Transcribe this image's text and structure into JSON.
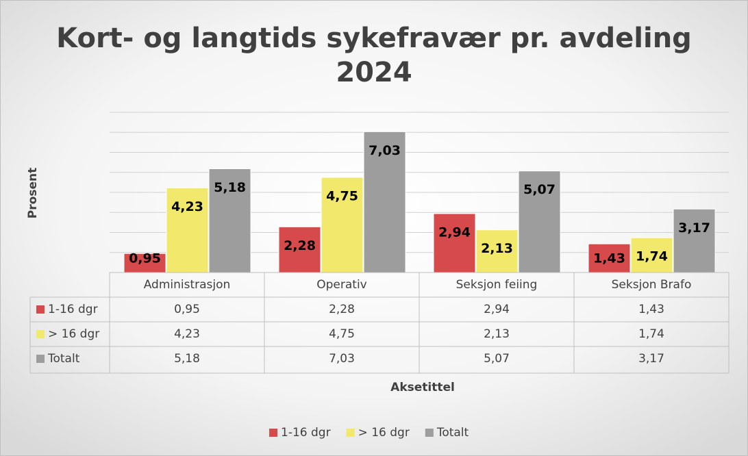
{
  "chart_data": {
    "type": "bar",
    "title": "Kort- og langtids sykefravær pr. avdeling",
    "subtitle": "2024",
    "y_label": "Prosent",
    "x_label": "Aksetittel",
    "categories": [
      "Administrasjon",
      "Operativ",
      "Seksjon feiing",
      "Seksjon Brafo"
    ],
    "series": [
      {
        "name": "1-16 dgr",
        "color": "#d64a4b",
        "values": [
          0.95,
          2.28,
          2.94,
          1.43
        ],
        "value_labels": [
          "0,95",
          "2,28",
          "2,94",
          "1,43"
        ]
      },
      {
        "name": "> 16 dgr",
        "color": "#f2e96c",
        "values": [
          4.23,
          4.75,
          2.13,
          1.74
        ],
        "value_labels": [
          "4,23",
          "4,75",
          "2,13",
          "1,74"
        ]
      },
      {
        "name": "Totalt",
        "color": "#9d9d9d",
        "values": [
          5.18,
          7.03,
          5.07,
          3.17
        ],
        "value_labels": [
          "5,18",
          "7,03",
          "5,07",
          "3,17"
        ]
      }
    ],
    "ylim": [
      0,
      8
    ],
    "yticks": [
      0,
      1,
      2,
      3,
      4,
      5,
      6,
      7,
      8
    ],
    "grid": true,
    "legend": "bottom",
    "data_table": true
  }
}
